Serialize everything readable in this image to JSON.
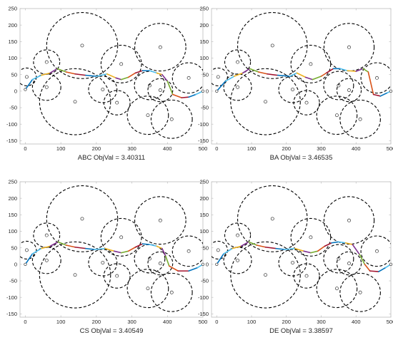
{
  "chart_data": [
    {
      "type": "line",
      "caption": "ABC  ObjVal = 3.40311",
      "xlim": [
        -15,
        500
      ],
      "ylim": [
        -160,
        250
      ],
      "xticks": [
        0,
        100,
        200,
        300,
        400,
        500
      ],
      "yticks": [
        -150,
        -100,
        -50,
        0,
        50,
        100,
        150,
        200,
        250
      ],
      "grid": false,
      "path": [
        [
          0,
          5
        ],
        [
          20,
          35
        ],
        [
          45,
          48
        ],
        [
          70,
          55
        ],
        [
          90,
          68
        ],
        [
          115,
          58
        ],
        [
          140,
          52
        ],
        [
          170,
          48
        ],
        [
          200,
          45
        ],
        [
          230,
          52
        ],
        [
          255,
          40
        ],
        [
          270,
          35
        ],
        [
          290,
          42
        ],
        [
          310,
          55
        ],
        [
          330,
          62
        ],
        [
          350,
          62
        ],
        [
          370,
          55
        ],
        [
          385,
          50
        ],
        [
          400,
          30
        ],
        [
          415,
          -10
        ],
        [
          440,
          -20
        ],
        [
          460,
          -18
        ],
        [
          480,
          -10
        ],
        [
          500,
          0
        ]
      ]
    },
    {
      "type": "line",
      "caption": "BA  ObjVal = 3.46535",
      "xlim": [
        -15,
        500
      ],
      "ylim": [
        -160,
        250
      ],
      "xticks": [
        0,
        100,
        200,
        300,
        400,
        500
      ],
      "yticks": [
        -150,
        -100,
        -50,
        0,
        50,
        100,
        150,
        200,
        250
      ],
      "grid": false,
      "path": [
        [
          0,
          0
        ],
        [
          25,
          30
        ],
        [
          50,
          45
        ],
        [
          75,
          55
        ],
        [
          95,
          68
        ],
        [
          120,
          58
        ],
        [
          145,
          52
        ],
        [
          175,
          48
        ],
        [
          210,
          45
        ],
        [
          230,
          55
        ],
        [
          255,
          42
        ],
        [
          275,
          35
        ],
        [
          300,
          45
        ],
        [
          315,
          55
        ],
        [
          335,
          68
        ],
        [
          355,
          68
        ],
        [
          375,
          62
        ],
        [
          400,
          60
        ],
        [
          420,
          68
        ],
        [
          435,
          58
        ],
        [
          450,
          -10
        ],
        [
          470,
          -15
        ],
        [
          490,
          -5
        ],
        [
          500,
          0
        ]
      ]
    },
    {
      "type": "line",
      "caption": "CS  ObjVal = 3.40549",
      "xlim": [
        -15,
        500
      ],
      "ylim": [
        -160,
        250
      ],
      "xticks": [
        0,
        100,
        200,
        300,
        400,
        500
      ],
      "yticks": [
        -150,
        -100,
        -50,
        0,
        50,
        100,
        150,
        200,
        250
      ],
      "grid": false,
      "path": [
        [
          0,
          0
        ],
        [
          20,
          32
        ],
        [
          45,
          48
        ],
        [
          70,
          55
        ],
        [
          92,
          68
        ],
        [
          115,
          58
        ],
        [
          140,
          52
        ],
        [
          170,
          48
        ],
        [
          195,
          45
        ],
        [
          225,
          48
        ],
        [
          250,
          40
        ],
        [
          270,
          35
        ],
        [
          290,
          40
        ],
        [
          310,
          52
        ],
        [
          330,
          62
        ],
        [
          350,
          60
        ],
        [
          370,
          55
        ],
        [
          385,
          48
        ],
        [
          395,
          25
        ],
        [
          405,
          -5
        ],
        [
          430,
          -20
        ],
        [
          460,
          -20
        ],
        [
          485,
          -10
        ],
        [
          500,
          0
        ]
      ]
    },
    {
      "type": "line",
      "caption": "DE  ObjVal = 3.38597",
      "xlim": [
        -15,
        500
      ],
      "ylim": [
        -160,
        250
      ],
      "xticks": [
        0,
        100,
        200,
        300,
        400,
        500
      ],
      "yticks": [
        -150,
        -100,
        -50,
        0,
        50,
        100,
        150,
        200,
        250
      ],
      "grid": false,
      "path": [
        [
          0,
          0
        ],
        [
          20,
          32
        ],
        [
          45,
          48
        ],
        [
          70,
          55
        ],
        [
          92,
          68
        ],
        [
          115,
          58
        ],
        [
          140,
          52
        ],
        [
          170,
          48
        ],
        [
          195,
          45
        ],
        [
          225,
          48
        ],
        [
          250,
          40
        ],
        [
          270,
          35
        ],
        [
          290,
          40
        ],
        [
          310,
          55
        ],
        [
          330,
          65
        ],
        [
          350,
          68
        ],
        [
          370,
          65
        ],
        [
          390,
          60
        ],
        [
          410,
          30
        ],
        [
          425,
          0
        ],
        [
          440,
          -20
        ],
        [
          465,
          -22
        ],
        [
          485,
          -10
        ],
        [
          500,
          0
        ]
      ]
    }
  ],
  "obstacles": [
    {
      "cx": 160,
      "cy": 138,
      "r": 100
    },
    {
      "cx": 380,
      "cy": 133,
      "r": 72
    },
    {
      "cx": 60,
      "cy": 88,
      "r": 37
    },
    {
      "cx": 270,
      "cy": 82,
      "r": 57
    },
    {
      "cx": 460,
      "cy": 40,
      "r": 46
    },
    {
      "cx": 4,
      "cy": 43,
      "r": 27
    },
    {
      "cx": 60,
      "cy": 12,
      "r": 40
    },
    {
      "cx": 218,
      "cy": 5,
      "r": 40
    },
    {
      "cx": 350,
      "cy": 17,
      "r": 43
    },
    {
      "cx": 380,
      "cy": 3,
      "r": 35
    },
    {
      "cx": 140,
      "cy": -32,
      "r": 100
    },
    {
      "cx": 258,
      "cy": -35,
      "r": 37
    },
    {
      "cx": 345,
      "cy": -73,
      "r": 58
    },
    {
      "cx": 412,
      "cy": -85,
      "r": 58
    }
  ],
  "segment_colors": [
    "#0072bd",
    "#4dbeee",
    "#edb120",
    "#7e2f8e",
    "#77ac30",
    "#d95319",
    "#a2142f"
  ]
}
